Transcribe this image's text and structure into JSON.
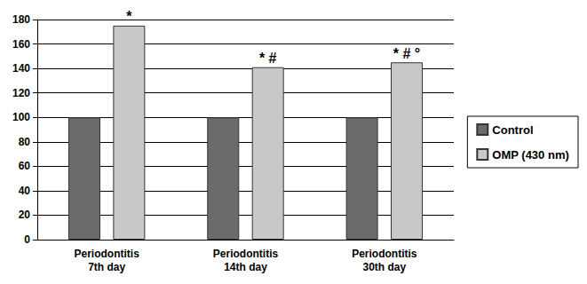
{
  "chart_data": {
    "type": "bar",
    "categories": [
      "Periodontitis\n7th day",
      "Periodontitis\n14th day",
      "Periodontitis\n30th day"
    ],
    "series": [
      {
        "name": "Control",
        "color": "#6b6b6b",
        "values": [
          100,
          100,
          100
        ]
      },
      {
        "name": "OMP (430 nm)",
        "color": "#c8c8c8",
        "values": [
          175,
          141,
          145
        ],
        "annotations": [
          "*",
          "* #",
          "* # °"
        ]
      }
    ],
    "ylim": [
      0,
      180
    ],
    "yticks": [
      0,
      20,
      40,
      60,
      80,
      100,
      120,
      140,
      160,
      180
    ],
    "grid": true,
    "legend": "right"
  }
}
